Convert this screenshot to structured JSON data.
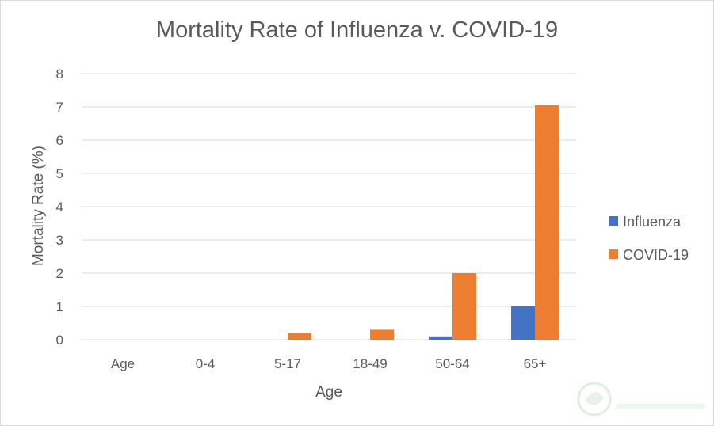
{
  "chart_data": {
    "type": "bar",
    "title": "Mortality Rate of Influenza v. COVID-19",
    "xlabel": "Age",
    "ylabel": "Mortality Rate (%)",
    "ylim": [
      0,
      8
    ],
    "yticks": [
      "0",
      "1",
      "2",
      "3",
      "4",
      "5",
      "6",
      "7",
      "8"
    ],
    "grid": true,
    "legend_position": "right",
    "categories": [
      "Age",
      "0-4",
      "5-17",
      "18-49",
      "50-64",
      "65+"
    ],
    "series": [
      {
        "name": "Influenza",
        "color": "#4472c4",
        "values": [
          0,
          0,
          0,
          0,
          0.1,
          1.0
        ]
      },
      {
        "name": "COVID-19",
        "color": "#ed7d31",
        "values": [
          0,
          0,
          0.2,
          0.3,
          2.0,
          7.05
        ]
      }
    ]
  }
}
